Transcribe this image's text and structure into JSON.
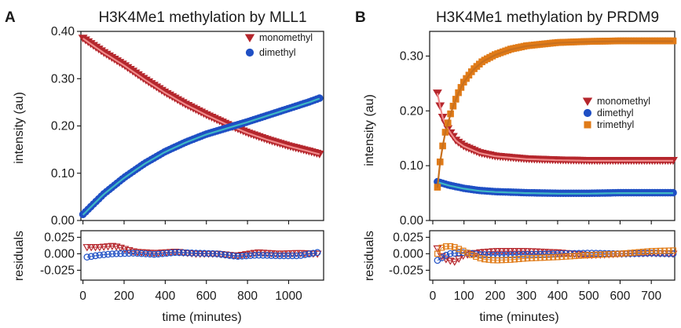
{
  "chart_data": [
    {
      "panel_letter": "A",
      "type": "scatter",
      "title": "H3K4Me1 methylation by MLL1",
      "xlabel": "time (minutes)",
      "ylabel": "intensity (au)",
      "residual_label": "residuals",
      "xlim": [
        -10,
        1170
      ],
      "ylim": [
        0,
        0.4
      ],
      "residual_ylim": [
        -0.04,
        0.035
      ],
      "xticks": [
        0,
        200,
        400,
        600,
        800,
        1000
      ],
      "xtick_labels": [
        "0",
        "200",
        "400",
        "600",
        "800",
        "1000"
      ],
      "yticks": [
        0,
        0.1,
        0.2,
        0.3,
        0.4
      ],
      "ytick_labels": [
        "0.00",
        "0.10",
        "0.20",
        "0.30",
        "0.40"
      ],
      "residual_yticks": [
        -0.025,
        0,
        0.025
      ],
      "residual_ytick_labels": [
        "-0.025",
        "0.000",
        "0.025"
      ],
      "legend_position": "top-right",
      "series": [
        {
          "name": "monomethyl",
          "marker": "triangle-down",
          "color": "#b5262c",
          "fit_color": "#f08a8a",
          "x": [
            0,
            100,
            200,
            300,
            400,
            500,
            600,
            700,
            800,
            900,
            1000,
            1100,
            1150
          ],
          "y": [
            0.385,
            0.355,
            0.328,
            0.298,
            0.27,
            0.245,
            0.223,
            0.203,
            0.185,
            0.17,
            0.157,
            0.146,
            0.14
          ],
          "residual_x": [
            20,
            80,
            150,
            250,
            350,
            450,
            550,
            650,
            750,
            850,
            950,
            1050,
            1140
          ],
          "residual_y": [
            0.01,
            0.01,
            0.012,
            0.003,
            0.001,
            0.003,
            0.0,
            0.0,
            -0.003,
            0.002,
            0.0,
            0.001,
            0.0
          ]
        },
        {
          "name": "dimethyl",
          "marker": "circle",
          "color": "#1f4fc4",
          "fit_color": "#3fb8c4",
          "x": [
            0,
            100,
            200,
            300,
            400,
            500,
            600,
            700,
            800,
            900,
            1000,
            1100,
            1150
          ],
          "y": [
            0.012,
            0.055,
            0.09,
            0.12,
            0.145,
            0.165,
            0.182,
            0.195,
            0.208,
            0.222,
            0.236,
            0.25,
            0.258
          ],
          "residual_x": [
            20,
            80,
            150,
            250,
            350,
            450,
            550,
            650,
            750,
            850,
            950,
            1050,
            1140
          ],
          "residual_y": [
            -0.005,
            -0.002,
            0.0,
            0.001,
            -0.001,
            0.002,
            0.001,
            0.0,
            -0.004,
            -0.002,
            -0.003,
            -0.003,
            0.002
          ]
        }
      ]
    },
    {
      "panel_letter": "B",
      "type": "scatter",
      "title": "H3K4Me1 methylation by PRDM9",
      "xlabel": "time (minutes)",
      "ylabel": "intensity (au)",
      "residual_label": "residuals",
      "xlim": [
        -10,
        775
      ],
      "ylim": [
        0,
        0.345
      ],
      "residual_ylim": [
        -0.04,
        0.035
      ],
      "xticks": [
        0,
        100,
        200,
        300,
        400,
        500,
        600,
        700
      ],
      "xtick_labels": [
        "0",
        "100",
        "200",
        "300",
        "400",
        "500",
        "600",
        "700"
      ],
      "yticks": [
        0,
        0.1,
        0.2,
        0.3
      ],
      "ytick_labels": [
        "0.00",
        "0.10",
        "0.20",
        "0.30"
      ],
      "residual_yticks": [
        -0.025,
        0,
        0.025
      ],
      "residual_ytick_labels": [
        "-0.025",
        "0.000",
        "0.025"
      ],
      "legend_position": "center-right",
      "series": [
        {
          "name": "monomethyl",
          "marker": "triangle-down",
          "color": "#b5262c",
          "fit_color": "#f08a8a",
          "x": [
            15,
            30,
            50,
            75,
            100,
            150,
            200,
            300,
            400,
            500,
            600,
            700,
            770
          ],
          "y": [
            0.232,
            0.19,
            0.165,
            0.145,
            0.135,
            0.123,
            0.117,
            0.112,
            0.11,
            0.109,
            0.109,
            0.109,
            0.109
          ],
          "residual_x": [
            15,
            30,
            50,
            70,
            100,
            150,
            200,
            300,
            400,
            500,
            600,
            700,
            770
          ],
          "residual_y": [
            0.008,
            -0.005,
            -0.01,
            -0.012,
            -0.002,
            0.002,
            0.004,
            0.004,
            0.002,
            -0.002,
            0.0,
            0.001,
            0.0
          ],
          "residual_color": "#b5262c"
        },
        {
          "name": "dimethyl",
          "marker": "circle",
          "color": "#1f4fc4",
          "fit_color": "#3fb8c4",
          "x": [
            15,
            50,
            100,
            150,
            200,
            300,
            400,
            500,
            600,
            700,
            770
          ],
          "y": [
            0.07,
            0.064,
            0.058,
            0.054,
            0.052,
            0.05,
            0.049,
            0.049,
            0.05,
            0.05,
            0.05
          ],
          "residual_x": [
            15,
            50,
            100,
            150,
            200,
            300,
            400,
            500,
            600,
            700,
            770
          ],
          "residual_y": [
            -0.01,
            0.0,
            0.002,
            -0.001,
            -0.002,
            -0.001,
            0.0,
            0.001,
            0.0,
            0.001,
            0.0
          ]
        },
        {
          "name": "trimethyl",
          "marker": "square",
          "color": "#e07b18",
          "fit_color": "#c8701e",
          "x": [
            15,
            25,
            40,
            60,
            80,
            100,
            130,
            160,
            200,
            250,
            300,
            400,
            500,
            600,
            700,
            770
          ],
          "y": [
            0.06,
            0.115,
            0.16,
            0.2,
            0.23,
            0.253,
            0.275,
            0.29,
            0.302,
            0.312,
            0.318,
            0.324,
            0.326,
            0.327,
            0.327,
            0.327
          ],
          "residual_x": [
            15,
            30,
            50,
            70,
            100,
            130,
            160,
            200,
            250,
            300,
            400,
            500,
            600,
            700,
            770
          ],
          "residual_y": [
            0.0,
            0.01,
            0.012,
            0.01,
            0.004,
            -0.003,
            -0.008,
            -0.01,
            -0.009,
            -0.007,
            -0.005,
            -0.002,
            0.0,
            0.004,
            0.005
          ]
        }
      ]
    }
  ]
}
